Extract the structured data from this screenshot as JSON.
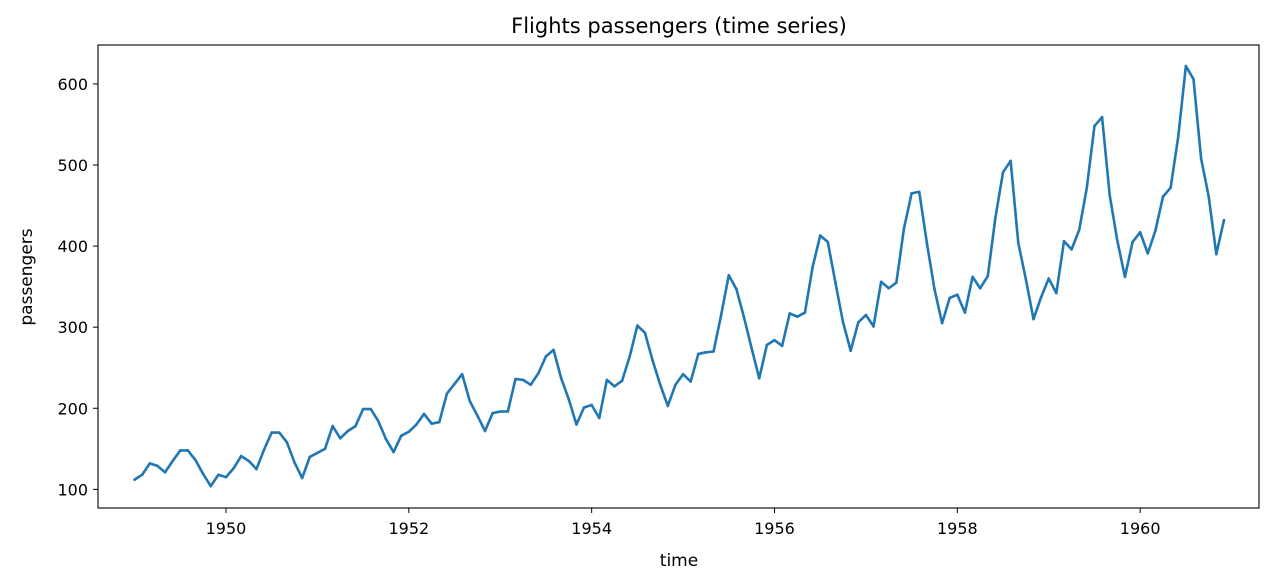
{
  "chart_data": {
    "type": "line",
    "title": "Flights passengers (time series)",
    "xlabel": "time",
    "ylabel": "passengers",
    "x_start": "1949-01",
    "x_frequency": "monthly",
    "xlim": [
      1948.6,
      1961.3
    ],
    "ylim": [
      77,
      648
    ],
    "xticks": [
      {
        "value": 1950,
        "label": "1950"
      },
      {
        "value": 1952,
        "label": "1952"
      },
      {
        "value": 1954,
        "label": "1954"
      },
      {
        "value": 1956,
        "label": "1956"
      },
      {
        "value": 1958,
        "label": "1958"
      },
      {
        "value": 1960,
        "label": "1960"
      }
    ],
    "yticks": [
      {
        "value": 100,
        "label": "100"
      },
      {
        "value": 200,
        "label": "200"
      },
      {
        "value": 300,
        "label": "300"
      },
      {
        "value": 400,
        "label": "400"
      },
      {
        "value": 500,
        "label": "500"
      },
      {
        "value": 600,
        "label": "600"
      }
    ],
    "grid": false,
    "series": [
      {
        "color": "#1f77b4",
        "values": [
          112,
          118,
          132,
          129,
          121,
          135,
          148,
          148,
          136,
          119,
          104,
          118,
          115,
          126,
          141,
          135,
          125,
          149,
          170,
          170,
          158,
          133,
          114,
          140,
          145,
          150,
          178,
          163,
          172,
          178,
          199,
          199,
          184,
          162,
          146,
          166,
          171,
          180,
          193,
          181,
          183,
          218,
          230,
          242,
          209,
          191,
          172,
          194,
          196,
          196,
          236,
          235,
          229,
          243,
          264,
          272,
          237,
          211,
          180,
          201,
          204,
          188,
          235,
          227,
          234,
          264,
          302,
          293,
          259,
          229,
          203,
          229,
          242,
          233,
          267,
          269,
          270,
          315,
          364,
          347,
          312,
          274,
          237,
          278,
          284,
          277,
          317,
          313,
          318,
          374,
          413,
          405,
          355,
          306,
          271,
          306,
          315,
          301,
          356,
          348,
          355,
          422,
          465,
          467,
          404,
          347,
          305,
          336,
          340,
          318,
          362,
          348,
          363,
          435,
          491,
          505,
          404,
          359,
          310,
          337,
          360,
          342,
          406,
          396,
          420,
          472,
          548,
          559,
          463,
          407,
          362,
          405,
          417,
          391,
          419,
          461,
          472,
          535,
          622,
          606,
          508,
          461,
          390,
          432
        ]
      }
    ]
  }
}
